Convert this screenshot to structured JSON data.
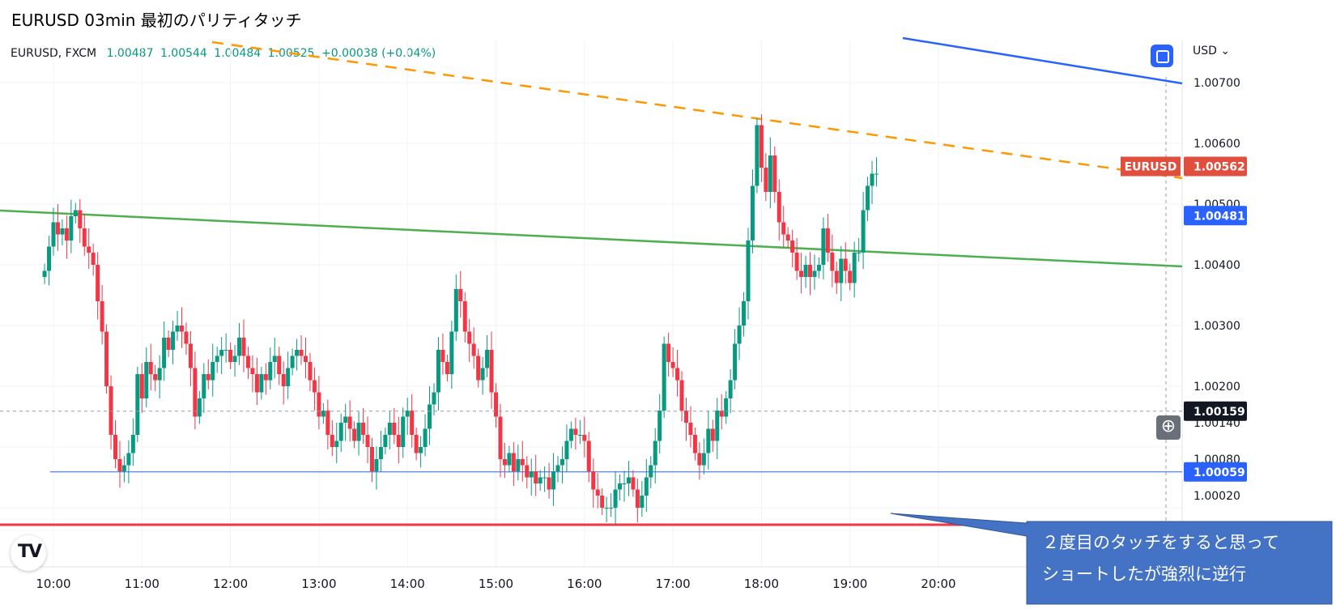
{
  "title": "EURUSD 03min 最初のパリティタッチ",
  "legend": {
    "symbol": "EURUSD, FXCM",
    "open": "1.00487",
    "high": "1.00544",
    "low": "1.00484",
    "close": "1.00525",
    "change": "+0.00038 (+0.04%)"
  },
  "currency_label": "USD",
  "colors": {
    "up": "#089981",
    "down": "#f23645",
    "price_tag": "#e04e3d",
    "blue_tag": "#2962ff",
    "dark_tag": "#131722",
    "green_line": "#4caf50",
    "orange_line": "#ff9800",
    "blue_line": "#2962ff",
    "red_line": "#f23645",
    "callout": "#4472c4"
  },
  "icons": [
    "fit-screen-icon",
    "plus-circle-icon",
    "tradingview-logo-icon",
    "chevron-down-icon"
  ],
  "annotation": {
    "line1": "２度目のタッチをすると思って",
    "line2": "ショートしたが強烈に逆行"
  },
  "chart_data": {
    "type": "candlestick",
    "x_axis_labels": [
      "10:00",
      "11:00",
      "12:00",
      "13:00",
      "14:00",
      "15:00",
      "16:00",
      "17:00",
      "18:00",
      "19:00",
      "20:00"
    ],
    "y_tick_labels": [
      "1.00700",
      "1.00600",
      "1.00500",
      "1.00400",
      "1.00300",
      "1.00200",
      "1.00140",
      "1.00080",
      "1.00020"
    ],
    "price_tags": [
      {
        "label": "EURUSD",
        "value": "1.00562",
        "kind": "symbol"
      },
      {
        "value": "1.00481",
        "kind": "blue"
      },
      {
        "value": "1.00159",
        "kind": "crosshair"
      },
      {
        "value": "1.00059",
        "kind": "blue"
      }
    ],
    "bar_interval_minutes": 3,
    "first_bar_time": "09:54",
    "closes": [
      1.0039,
      1.0043,
      1.0047,
      1.0045,
      1.0046,
      1.0044,
      1.0048,
      1.0049,
      1.0046,
      1.0043,
      1.0042,
      1.004,
      1.0034,
      1.0029,
      1.002,
      1.0012,
      1.0008,
      1.0006,
      1.0007,
      1.0009,
      1.0012,
      1.0022,
      1.0018,
      1.0024,
      1.0022,
      1.0021,
      1.0023,
      1.0028,
      1.0026,
      1.0029,
      1.003,
      1.0029,
      1.0027,
      1.0023,
      1.0015,
      1.0018,
      1.0022,
      1.0021,
      1.0024,
      1.0025,
      1.0026,
      1.0026,
      1.0024,
      1.0025,
      1.0028,
      1.0025,
      1.0023,
      1.0022,
      1.0019,
      1.0022,
      1.0021,
      1.0024,
      1.0025,
      1.0022,
      1.002,
      1.0023,
      1.0025,
      1.0026,
      1.0025,
      1.0024,
      1.0021,
      1.0019,
      1.0015,
      1.0016,
      1.0012,
      1.001,
      1.0011,
      1.0014,
      1.0015,
      1.0013,
      1.0011,
      1.0014,
      1.0012,
      1.001,
      1.0006,
      1.0008,
      1.001,
      1.0012,
      1.0014,
      1.0012,
      1.001,
      1.0015,
      1.0016,
      1.0012,
      1.0009,
      1.001,
      1.0013,
      1.0017,
      1.0019,
      1.0026,
      1.0024,
      1.0022,
      1.0029,
      1.0036,
      1.0034,
      1.0029,
      1.0027,
      1.0025,
      1.0021,
      1.0023,
      1.0026,
      1.0019,
      1.0015,
      1.0008,
      1.0007,
      1.0009,
      1.0006,
      1.0008,
      1.0007,
      1.0005,
      1.0006,
      1.0004,
      1.0005,
      1.0005,
      1.0003,
      1.0006,
      1.0007,
      1.0008,
      1.0011,
      1.0013,
      1.0012,
      1.0012,
      1.0011,
      1.0006,
      1.0003,
      1.0002,
      1.0,
      1.0,
      1.0,
      1.0003,
      1.0004,
      1.0004,
      1.0005,
      1.0003,
      1.0,
      1.0002,
      1.0005,
      1.0007,
      1.0011,
      1.0016,
      1.0027,
      1.0024,
      1.0023,
      1.0021,
      1.0016,
      1.0014,
      1.0012,
      1.0009,
      1.0007,
      1.0009,
      1.0013,
      1.0011,
      1.0016,
      1.0015,
      1.0018,
      1.0021,
      1.0027,
      1.003,
      1.0034,
      1.0044,
      1.0053,
      1.0063,
      1.0056,
      1.0052,
      1.0058,
      1.0052,
      1.0047,
      1.0045,
      1.0044,
      1.0042,
      1.0039,
      1.0038,
      1.004,
      1.0038,
      1.0039,
      1.004,
      1.0046,
      1.0042,
      1.0039,
      1.0037,
      1.0041,
      1.0039,
      1.0037,
      1.0042,
      1.0042,
      1.0049,
      1.0053,
      1.0055,
      1.0055
    ]
  }
}
